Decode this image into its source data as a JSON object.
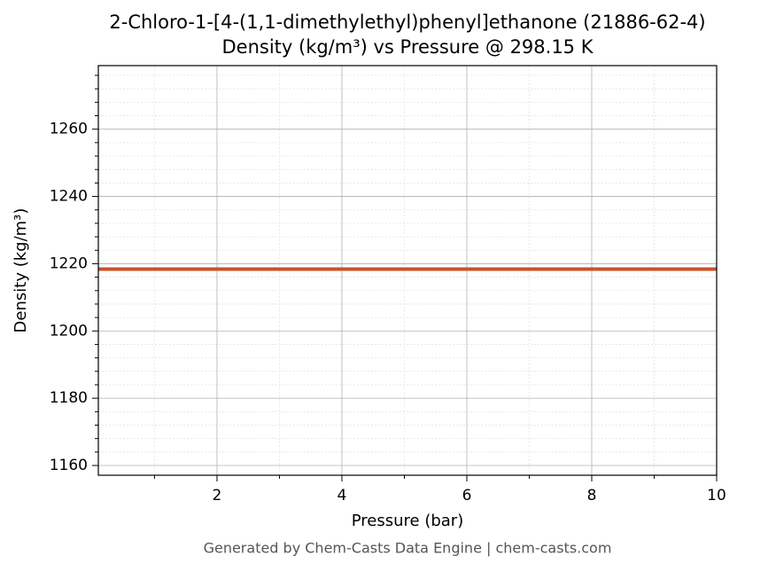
{
  "chart_data": {
    "type": "line",
    "title": "2-Chloro-1-[4-(1,1-dimethylethyl)phenyl]ethanone (21886-62-4)",
    "subtitle": "Density (kg/m³) vs Pressure @ 298.15 K",
    "x_label": "Pressure (bar)",
    "y_label": "Density (kg/m³)",
    "footer": "Generated by Chem-Casts Data Engine | chem-casts.com",
    "x": [
      0.1,
      1,
      2,
      3,
      4,
      5,
      6,
      7,
      8,
      9,
      10
    ],
    "series": [
      {
        "name": "Density",
        "color": "#c8522a",
        "values": [
          1218.4,
          1218.4,
          1218.4,
          1218.4,
          1218.4,
          1218.4,
          1218.4,
          1218.4,
          1218.4,
          1218.4,
          1218.4
        ]
      }
    ],
    "xlim": [
      0.1,
      10
    ],
    "ylim": [
      1157.1,
      1278.9
    ],
    "xticks": [
      2,
      4,
      6,
      8,
      10
    ],
    "yticks": [
      1160,
      1180,
      1200,
      1220,
      1240,
      1260
    ],
    "xminorticks": [
      1,
      3,
      5,
      7,
      9
    ],
    "yminorticks": [
      1164,
      1168,
      1172,
      1176,
      1184,
      1188,
      1192,
      1196,
      1204,
      1208,
      1212,
      1216,
      1224,
      1228,
      1232,
      1236,
      1244,
      1248,
      1252,
      1256,
      1264,
      1268,
      1272,
      1276
    ],
    "grid": true
  }
}
